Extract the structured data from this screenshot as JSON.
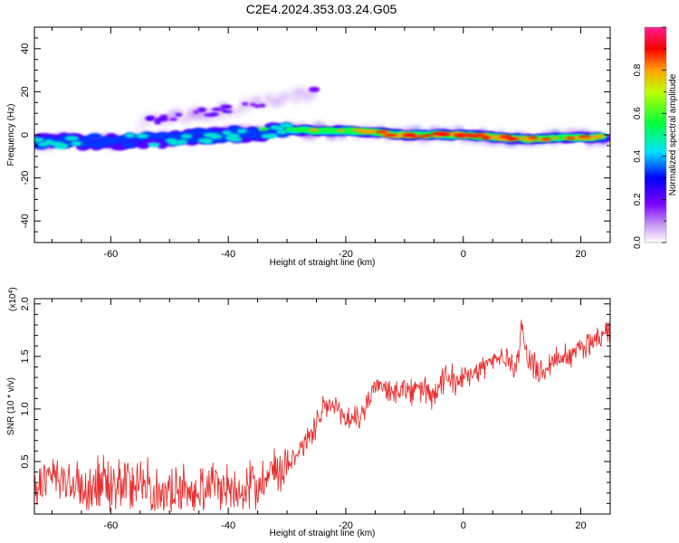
{
  "title": "C2E4.2024.353.03.24.G05",
  "chart_data": [
    {
      "type": "heatmap",
      "xlabel": "Height of straight line (km)",
      "ylabel": "Frequency (Hz)",
      "xlim": [
        -73,
        25
      ],
      "ylim": [
        -50,
        50
      ],
      "xticks": [
        "-60",
        "-40",
        "-20",
        "0",
        "20"
      ],
      "yticks": [
        "40",
        "20",
        "0",
        "-20",
        "-40"
      ],
      "colorbar": {
        "label": "Normalized spectral amplitude",
        "range": [
          0.0,
          1.0
        ],
        "ticks": [
          "0.0",
          "0.2",
          "0.4",
          "0.6",
          "0.8"
        ]
      },
      "features": [
        {
          "name": "main band",
          "x": [
            -73,
            -60,
            -50,
            -40,
            -30,
            -20,
            -10,
            0,
            10,
            24
          ],
          "freq_hz": [
            -3,
            -3,
            -2,
            0,
            2,
            2,
            0,
            0,
            -2,
            -1
          ],
          "amplitude": [
            0.45,
            0.4,
            0.4,
            0.45,
            0.6,
            0.75,
            0.85,
            0.95,
            0.85,
            0.7
          ]
        },
        {
          "name": "rising branch",
          "x": [
            -55,
            -50,
            -45,
            -40,
            -35,
            -30,
            -25
          ],
          "freq_hz": [
            6,
            8,
            10,
            12,
            14,
            17,
            20
          ],
          "amplitude": [
            0.2,
            0.2,
            0.2,
            0.15,
            0.15,
            0.15,
            0.1
          ]
        }
      ]
    },
    {
      "type": "line",
      "xlabel": "Height of straight line (km)",
      "ylabel": "SNR (10 * v/v)",
      "yscale_label": "(x10",
      "yscale_exp": "4",
      "xlim": [
        -73,
        25
      ],
      "ylim": [
        0,
        2.05
      ],
      "xticks": [
        "-60",
        "-40",
        "-20",
        "0",
        "20"
      ],
      "yticks": [
        "0.5",
        "1.0",
        "1.5",
        "2.0"
      ],
      "color": "#e83030",
      "series": [
        {
          "x": [
            -73,
            -70,
            -67,
            -64,
            -61,
            -58,
            -55,
            -52,
            -49,
            -46,
            -43,
            -40,
            -37,
            -34,
            -31,
            -28,
            -25,
            -23,
            -21,
            -19,
            -17,
            -15,
            -13,
            -11,
            -9,
            -7,
            -5,
            -3,
            -1,
            1,
            3,
            5,
            7,
            9,
            10,
            11,
            13,
            15,
            17,
            19,
            21,
            23,
            25
          ],
          "y": [
            0.25,
            0.35,
            0.3,
            0.2,
            0.3,
            0.25,
            0.35,
            0.2,
            0.25,
            0.2,
            0.3,
            0.25,
            0.25,
            0.35,
            0.45,
            0.6,
            0.85,
            1.05,
            0.95,
            0.9,
            0.95,
            1.25,
            1.15,
            1.2,
            1.15,
            1.2,
            1.1,
            1.3,
            1.25,
            1.35,
            1.4,
            1.45,
            1.5,
            1.4,
            1.8,
            1.45,
            1.35,
            1.45,
            1.5,
            1.55,
            1.6,
            1.7,
            1.75
          ]
        }
      ]
    }
  ]
}
